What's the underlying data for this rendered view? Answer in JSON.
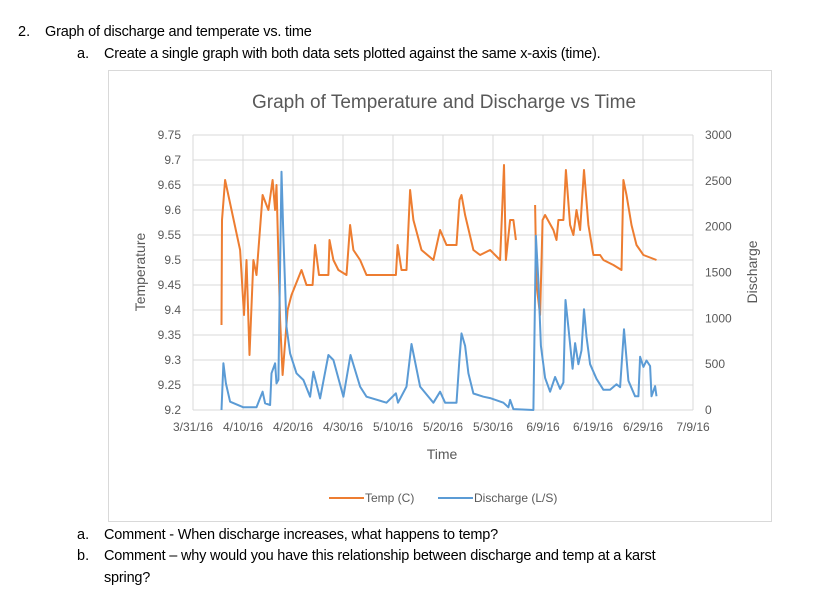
{
  "document": {
    "item2": {
      "number": "2.",
      "text": "Graph of discharge and temperate vs. time"
    },
    "item2a": {
      "number": "a.",
      "text": "Create a single graph with both data sets plotted against the same x-axis (time)."
    },
    "comments": [
      {
        "number": "a.",
        "text": "Comment - When discharge increases, what happens to temp?"
      },
      {
        "number": "b.",
        "text": "Comment – why would you have this relationship between discharge and temp at a karst",
        "continuation": "spring?"
      }
    ]
  },
  "chart_data": {
    "type": "line",
    "title": "Graph of Temperature and Discharge vs Time",
    "xlabel": "Time",
    "ylabel": "Temperature",
    "y2label": "Discharge",
    "xlim": [
      "2016-03-31",
      "2016-07-09"
    ],
    "ylim": [
      9.2,
      9.75
    ],
    "y2lim": [
      0,
      3000
    ],
    "grid": true,
    "legend_placement": "bottom",
    "x_ticks": [
      "3/31/16",
      "4/10/16",
      "4/20/16",
      "4/30/16",
      "5/10/16",
      "5/20/16",
      "5/30/16",
      "6/9/16",
      "6/19/16",
      "6/29/16",
      "7/9/16"
    ],
    "y_ticks": [
      "9.2",
      "9.25",
      "9.3",
      "9.35",
      "9.4",
      "9.45",
      "9.5",
      "9.55",
      "9.6",
      "9.65",
      "9.7",
      "9.75"
    ],
    "y2_ticks": [
      "0",
      "500",
      "1000",
      "1500",
      "2000",
      "2500",
      "3000"
    ],
    "series": [
      {
        "name": "Temp (C)",
        "axis": "left",
        "color": "#ED7D31",
        "points": [
          [
            "2016-04-05T17:00",
            9.37
          ],
          [
            "2016-04-05T19:00",
            9.58
          ],
          [
            "2016-04-06T10:00",
            9.66
          ],
          [
            "2016-04-09T10:00",
            9.52
          ],
          [
            "2016-04-10T05:00",
            9.39
          ],
          [
            "2016-04-10T17:00",
            9.5
          ],
          [
            "2016-04-11T07:00",
            9.31
          ],
          [
            "2016-04-12T02:00",
            9.5
          ],
          [
            "2016-04-12T17:00",
            9.47
          ],
          [
            "2016-04-13T22:00",
            9.63
          ],
          [
            "2016-04-15T02:00",
            9.6
          ],
          [
            "2016-04-15T22:00",
            9.66
          ],
          [
            "2016-04-16T10:00",
            9.6
          ],
          [
            "2016-04-16T17:00",
            9.65
          ],
          [
            "2016-04-17T10:00",
            9.38
          ],
          [
            "2016-04-17T22:00",
            9.27
          ],
          [
            "2016-04-18T22:00",
            9.4
          ],
          [
            "2016-04-19T17:00",
            9.43
          ],
          [
            "2016-04-21T17:00",
            9.48
          ],
          [
            "2016-04-22T17:00",
            9.45
          ],
          [
            "2016-04-23T22:00",
            9.45
          ],
          [
            "2016-04-24T10:00",
            9.53
          ],
          [
            "2016-04-25T05:00",
            9.47
          ],
          [
            "2016-04-27T02:00",
            9.47
          ],
          [
            "2016-04-27T07:00",
            9.54
          ],
          [
            "2016-04-28T02:00",
            9.5
          ],
          [
            "2016-04-29T02:00",
            9.48
          ],
          [
            "2016-04-30T17:00",
            9.47
          ],
          [
            "2016-05-01T10:00",
            9.57
          ],
          [
            "2016-05-02T02:00",
            9.52
          ],
          [
            "2016-05-03T10:00",
            9.5
          ],
          [
            "2016-05-04T17:00",
            9.47
          ],
          [
            "2016-05-10T14:00",
            9.47
          ],
          [
            "2016-05-10T22:00",
            9.53
          ],
          [
            "2016-05-11T17:00",
            9.48
          ],
          [
            "2016-05-12T17:00",
            9.48
          ],
          [
            "2016-05-13T10:00",
            9.64
          ],
          [
            "2016-05-14T02:00",
            9.58
          ],
          [
            "2016-05-15T17:00",
            9.52
          ],
          [
            "2016-05-18T02:00",
            9.5
          ],
          [
            "2016-05-19T10:00",
            9.56
          ],
          [
            "2016-05-20T17:00",
            9.53
          ],
          [
            "2016-05-22T17:00",
            9.53
          ],
          [
            "2016-05-23T07:00",
            9.62
          ],
          [
            "2016-05-23T17:00",
            9.63
          ],
          [
            "2016-05-24T10:00",
            9.59
          ],
          [
            "2016-05-26T02:00",
            9.52
          ],
          [
            "2016-05-27T10:00",
            9.51
          ],
          [
            "2016-05-29T10:00",
            9.52
          ],
          [
            "2016-05-31T10:00",
            9.5
          ],
          [
            "2016-06-01T05:00",
            9.69
          ],
          [
            "2016-06-01T14:00",
            9.5
          ],
          [
            "2016-06-02T10:00",
            9.58
          ],
          [
            "2016-06-03T02:00",
            9.58
          ],
          [
            "2016-06-03T14:00",
            9.54
          ],
          null,
          [
            "2016-06-07T10:00",
            9.61
          ],
          [
            "2016-06-07T17:00",
            9.45
          ],
          [
            "2016-06-08T10:00",
            9.39
          ],
          [
            "2016-06-08T22:00",
            9.58
          ],
          [
            "2016-06-09T10:00",
            9.59
          ],
          [
            "2016-06-11T02:00",
            9.56
          ],
          [
            "2016-06-11T17:00",
            9.54
          ],
          [
            "2016-06-12T02:00",
            9.58
          ],
          [
            "2016-06-13T02:00",
            9.58
          ],
          [
            "2016-06-13T14:00",
            9.68
          ],
          [
            "2016-06-14T10:00",
            9.57
          ],
          [
            "2016-06-15T02:00",
            9.55
          ],
          [
            "2016-06-15T17:00",
            9.6
          ],
          [
            "2016-06-16T10:00",
            9.56
          ],
          [
            "2016-06-17T05:00",
            9.68
          ],
          [
            "2016-06-18T02:00",
            9.57
          ],
          [
            "2016-06-19T02:00",
            9.51
          ],
          [
            "2016-06-20T10:00",
            9.51
          ],
          [
            "2016-06-21T02:00",
            9.5
          ],
          [
            "2016-06-23T02:00",
            9.49
          ],
          [
            "2016-06-24T17:00",
            9.48
          ],
          [
            "2016-06-25T02:00",
            9.66
          ],
          [
            "2016-06-25T17:00",
            9.63
          ],
          [
            "2016-06-26T17:00",
            9.57
          ],
          [
            "2016-06-27T17:00",
            9.53
          ],
          [
            "2016-06-29T02:00",
            9.51
          ],
          [
            "2016-07-01T17:00",
            9.5
          ]
        ]
      },
      {
        "name": "Discharge (L/S)",
        "axis": "right",
        "color": "#5B9BD5",
        "points": [
          [
            "2016-04-05T17:00",
            0
          ],
          [
            "2016-04-06T02:00",
            509
          ],
          [
            "2016-04-06T14:00",
            290
          ],
          [
            "2016-04-07T10:00",
            91
          ],
          [
            "2016-04-10T02:00",
            29
          ],
          [
            "2016-04-12T17:00",
            29
          ],
          [
            "2016-04-13T22:00",
            200
          ],
          [
            "2016-04-14T10:00",
            73
          ],
          [
            "2016-04-15T10:00",
            55
          ],
          [
            "2016-04-15T17:00",
            400
          ],
          [
            "2016-04-16T10:00",
            509
          ],
          [
            "2016-04-16T17:00",
            290
          ],
          [
            "2016-04-17T02:00",
            330
          ],
          [
            "2016-04-17T17:00",
            2600
          ],
          [
            "2016-04-18T02:00",
            1890
          ],
          [
            "2016-04-18T17:00",
            909
          ],
          [
            "2016-04-19T10:00",
            618
          ],
          [
            "2016-04-20T17:00",
            400
          ],
          [
            "2016-04-22T02:00",
            327
          ],
          [
            "2016-04-23T10:00",
            145
          ],
          [
            "2016-04-24T02:00",
            418
          ],
          [
            "2016-04-25T10:00",
            127
          ],
          [
            "2016-04-27T02:00",
            600
          ],
          [
            "2016-04-28T02:00",
            545
          ],
          [
            "2016-04-30T02:00",
            145
          ],
          [
            "2016-05-01T12:00",
            600
          ],
          [
            "2016-05-03T10:00",
            255
          ],
          [
            "2016-05-04T17:00",
            145
          ],
          [
            "2016-05-08T17:00",
            80
          ],
          [
            "2016-05-10T14:00",
            182
          ],
          [
            "2016-05-11T00:00",
            80
          ],
          [
            "2016-05-12T17:00",
            255
          ],
          [
            "2016-05-13T17:00",
            720
          ],
          [
            "2016-05-15T10:00",
            255
          ],
          [
            "2016-05-18T02:00",
            80
          ],
          [
            "2016-05-19T10:00",
            200
          ],
          [
            "2016-05-20T10:00",
            80
          ],
          [
            "2016-05-22T17:00",
            80
          ],
          [
            "2016-05-23T07:00",
            564
          ],
          [
            "2016-05-23T17:00",
            836
          ],
          [
            "2016-05-24T10:00",
            700
          ],
          [
            "2016-05-25T02:00",
            400
          ],
          [
            "2016-05-26T02:00",
            180
          ],
          [
            "2016-05-28T02:00",
            145
          ],
          [
            "2016-05-29T10:00",
            130
          ],
          [
            "2016-06-01T02:00",
            80
          ],
          [
            "2016-06-02T02:00",
            30
          ],
          [
            "2016-06-02T10:00",
            110
          ],
          [
            "2016-06-03T02:00",
            10
          ],
          [
            "2016-06-07T02:00",
            0
          ],
          [
            "2016-06-07T14:00",
            1900
          ],
          [
            "2016-06-08T02:00",
            1400
          ],
          [
            "2016-06-08T14:00",
            700
          ],
          [
            "2016-06-09T10:00",
            350
          ],
          [
            "2016-06-10T10:00",
            200
          ],
          [
            "2016-06-11T10:00",
            360
          ],
          [
            "2016-06-12T10:00",
            230
          ],
          [
            "2016-06-13T02:00",
            300
          ],
          [
            "2016-06-13T12:00",
            1200
          ],
          [
            "2016-06-14T02:00",
            900
          ],
          [
            "2016-06-14T22:00",
            450
          ],
          [
            "2016-06-15T10:00",
            730
          ],
          [
            "2016-06-16T02:00",
            500
          ],
          [
            "2016-06-16T17:00",
            650
          ],
          [
            "2016-06-17T05:00",
            1100
          ],
          [
            "2016-06-17T17:00",
            800
          ],
          [
            "2016-06-18T10:00",
            500
          ],
          [
            "2016-06-19T17:00",
            340
          ],
          [
            "2016-06-21T02:00",
            220
          ],
          [
            "2016-06-22T10:00",
            220
          ],
          [
            "2016-06-23T17:00",
            280
          ],
          [
            "2016-06-24T10:00",
            250
          ],
          [
            "2016-06-25T05:00",
            880
          ],
          [
            "2016-06-26T02:00",
            320
          ],
          [
            "2016-06-27T10:00",
            150
          ],
          [
            "2016-06-28T02:00",
            150
          ],
          [
            "2016-06-28T10:00",
            580
          ],
          [
            "2016-06-29T02:00",
            470
          ],
          [
            "2016-06-29T17:00",
            540
          ],
          [
            "2016-06-30T10:00",
            480
          ],
          [
            "2016-06-30T17:00",
            150
          ],
          [
            "2016-07-01T10:00",
            260
          ],
          [
            "2016-07-01T17:00",
            150
          ]
        ]
      }
    ]
  }
}
